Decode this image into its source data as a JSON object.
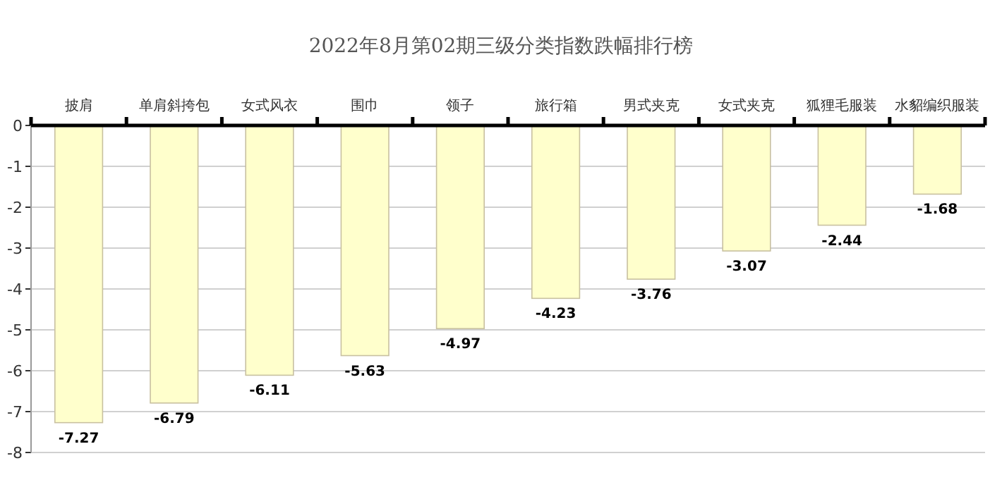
{
  "chart_data": {
    "type": "bar",
    "title": "2022年8月第02期三级分类指数跌幅排行榜",
    "categories": [
      "披肩",
      "单肩斜挎包",
      "女式风衣",
      "围巾",
      "领子",
      "旅行箱",
      "男式夹克",
      "女式夹克",
      "狐狸毛服装",
      "水貂编织服装"
    ],
    "values": [
      -7.27,
      -6.79,
      -6.11,
      -5.63,
      -4.97,
      -4.23,
      -3.76,
      -3.07,
      -2.44,
      -1.68
    ],
    "color": "#ffffcc",
    "ylim": [
      -8,
      0
    ],
    "yticks": [
      0,
      -1,
      -2,
      -3,
      -4,
      -5,
      -6,
      -7,
      -8
    ],
    "grid": "y",
    "data_labels": true
  }
}
